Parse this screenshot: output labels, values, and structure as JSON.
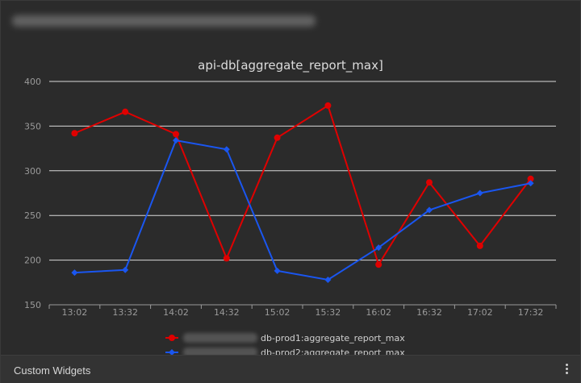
{
  "footer": {
    "label": "Custom Widgets"
  },
  "colors": {
    "series1": "#e00000",
    "series2": "#1a56f0",
    "grid": "#d9d9d9",
    "text": "#c8c8c8"
  },
  "chart_data": {
    "type": "line",
    "title": "api-db[aggregate_report_max]",
    "xlabel": "",
    "ylabel": "",
    "categories": [
      "13:02",
      "13:32",
      "14:02",
      "14:32",
      "15:02",
      "15:32",
      "16:02",
      "16:32",
      "17:02",
      "17:32"
    ],
    "ylim": [
      150,
      400
    ],
    "yticks": [
      150,
      200,
      250,
      300,
      350,
      400
    ],
    "grid": true,
    "legend": "bottom",
    "series": [
      {
        "name": "db-prod1:aggregate_report_max",
        "color": "#e00000",
        "values": [
          342,
          366,
          341,
          202,
          337,
          373,
          195,
          287,
          216,
          291
        ]
      },
      {
        "name": "db-prod2:aggregate_report_max",
        "color": "#1a56f0",
        "values": [
          186,
          189,
          334,
          324,
          188,
          178,
          214,
          256,
          275,
          286
        ]
      }
    ]
  }
}
